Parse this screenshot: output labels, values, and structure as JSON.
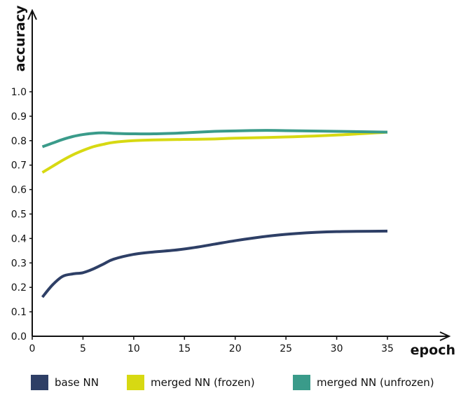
{
  "chart_data": {
    "type": "line",
    "xlabel": "epoch",
    "ylabel": "accuracy",
    "xlim": [
      0,
      35
    ],
    "ylim": [
      0,
      1.0
    ],
    "x_ticks": [
      "0",
      "5",
      "10",
      "15",
      "20",
      "25",
      "30",
      "35"
    ],
    "y_ticks": [
      "0.0",
      "0.1",
      "0.2",
      "0.3",
      "0.4",
      "0.5",
      "0.6",
      "0.7",
      "0.8",
      "0.9",
      "1.0"
    ],
    "grid": false,
    "legend_position": "bottom",
    "series": [
      {
        "name": "base NN",
        "color": "#2e3f66",
        "x": [
          1,
          2,
          3,
          4,
          5,
          6,
          7,
          8,
          10,
          12,
          14,
          16,
          18,
          20,
          22,
          24,
          26,
          28,
          30,
          32,
          35
        ],
        "y": [
          0.16,
          0.21,
          0.245,
          0.255,
          0.26,
          0.275,
          0.295,
          0.315,
          0.335,
          0.345,
          0.352,
          0.363,
          0.377,
          0.391,
          0.403,
          0.413,
          0.42,
          0.425,
          0.428,
          0.429,
          0.43
        ]
      },
      {
        "name": "merged NN (frozen)",
        "color": "#d7d912",
        "x": [
          1,
          2,
          3,
          4,
          5,
          6,
          7,
          8,
          10,
          12,
          15,
          18,
          20,
          25,
          30,
          35
        ],
        "y": [
          0.67,
          0.695,
          0.72,
          0.742,
          0.76,
          0.775,
          0.785,
          0.793,
          0.8,
          0.803,
          0.805,
          0.807,
          0.81,
          0.815,
          0.823,
          0.835
        ]
      },
      {
        "name": "merged NN (unfrozen)",
        "color": "#3a9b8a",
        "x": [
          1,
          2,
          3,
          4,
          5,
          6,
          7,
          8,
          10,
          12,
          15,
          18,
          20,
          23,
          25,
          30,
          35
        ],
        "y": [
          0.775,
          0.79,
          0.805,
          0.817,
          0.825,
          0.83,
          0.832,
          0.83,
          0.828,
          0.828,
          0.832,
          0.838,
          0.84,
          0.842,
          0.841,
          0.838,
          0.835
        ]
      }
    ]
  }
}
